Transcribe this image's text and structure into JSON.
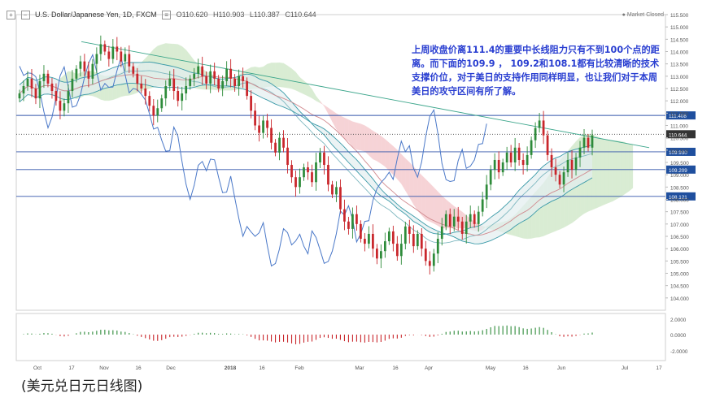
{
  "header": {
    "symbol": "U.S. Dollar/Japanese Yen, 1D, FXCM",
    "open": "O110.620",
    "high": "H110.903",
    "low": "L110.387",
    "close": "C110.644",
    "market_status": "Market Closed"
  },
  "annotation": "上周收盘价离111.4的重要中长线阻力只有不到100个点的距离。而下面的109.9 ， 109.2和108.1都有比较清晰的技术支撑价位，对于美日的支持作用同样明显，也让我们对于本周美日的攻守区间有所了解。",
  "caption": "(美元兑日元日线图)",
  "colors": {
    "up": "#2e8b3a",
    "down": "#c9262b",
    "blue_line": "#4a78c8",
    "level_line": "#3355aa",
    "trend_line": "#3aa58a",
    "cloud_red": "#f6d3d6",
    "cloud_green": "#d9ecd3",
    "price_tag": "#1f4f9e",
    "current_tag": "#333333",
    "annotation": "#2a3fd1"
  },
  "chart_data": {
    "type": "candlestick",
    "title": "U.S. Dollar/Japanese Yen, 1D, FXCM",
    "ylim": [
      103.5,
      115.5
    ],
    "y_ticks": [
      "115.500",
      "115.000",
      "114.500",
      "114.000",
      "113.500",
      "113.000",
      "112.500",
      "112.000",
      "111.500",
      "111.000",
      "110.500",
      "110.000",
      "109.500",
      "109.000",
      "108.500",
      "108.000",
      "107.500",
      "107.000",
      "106.500",
      "106.000",
      "105.500",
      "105.000",
      "104.500",
      "104.000"
    ],
    "x_tick_labels": [
      "Oct",
      "17",
      "Nov",
      "16",
      "Dec",
      "2018",
      "16",
      "Feb",
      "Mar",
      "16",
      "Apr",
      "May",
      "16",
      "Jun",
      "Jul",
      "17"
    ],
    "levels": [
      {
        "label": "111.408",
        "value": 111.408
      },
      {
        "label": "109.930",
        "value": 109.93
      },
      {
        "label": "109.209",
        "value": 109.209
      },
      {
        "label": "108.121",
        "value": 108.121
      }
    ],
    "current_price": {
      "label": "110.644",
      "value": 110.644
    },
    "trendline": {
      "from": {
        "x": "Sep",
        "value": 114.4
      },
      "to": {
        "x": "Jul",
        "value": 110.1
      }
    },
    "closes": [
      112.3,
      112.6,
      112.9,
      112.5,
      112.1,
      112.8,
      113.1,
      112.7,
      112.4,
      112.0,
      111.6,
      111.9,
      112.4,
      112.9,
      113.3,
      113.6,
      113.2,
      112.9,
      113.5,
      113.9,
      114.3,
      114.0,
      113.7,
      114.2,
      114.0,
      113.6,
      113.9,
      113.4,
      113.1,
      112.7,
      112.5,
      112.2,
      111.8,
      111.4,
      111.7,
      112.1,
      112.6,
      112.9,
      112.4,
      112.0,
      112.3,
      112.6,
      112.9,
      113.1,
      113.4,
      113.0,
      112.7,
      113.2,
      112.9,
      112.5,
      112.8,
      113.3,
      112.9,
      112.6,
      113.0,
      112.8,
      112.2,
      111.6,
      111.0,
      110.7,
      111.2,
      110.9,
      110.3,
      109.9,
      110.5,
      110.1,
      109.4,
      108.9,
      108.5,
      108.9,
      109.3,
      109.1,
      108.7,
      109.5,
      109.9,
      109.4,
      108.6,
      108.2,
      108.5,
      107.6,
      107.1,
      106.8,
      107.4,
      107.0,
      106.4,
      106.2,
      106.6,
      106.0,
      105.6,
      105.9,
      106.3,
      106.7,
      106.2,
      105.7,
      106.2,
      106.9,
      106.6,
      106.1,
      106.6,
      106.0,
      105.5,
      105.3,
      105.8,
      106.4,
      106.9,
      107.4,
      106.9,
      107.3,
      107.1,
      106.6,
      107.1,
      107.4,
      107.0,
      107.5,
      108.0,
      108.6,
      109.2,
      109.6,
      109.1,
      109.5,
      109.9,
      109.5,
      110.1,
      109.6,
      109.4,
      109.8,
      110.4,
      110.9,
      111.2,
      110.6,
      109.8,
      109.3,
      109.0,
      108.6,
      109.1,
      109.6,
      109.2,
      109.7,
      110.1,
      110.5,
      110.1,
      110.6
    ]
  }
}
